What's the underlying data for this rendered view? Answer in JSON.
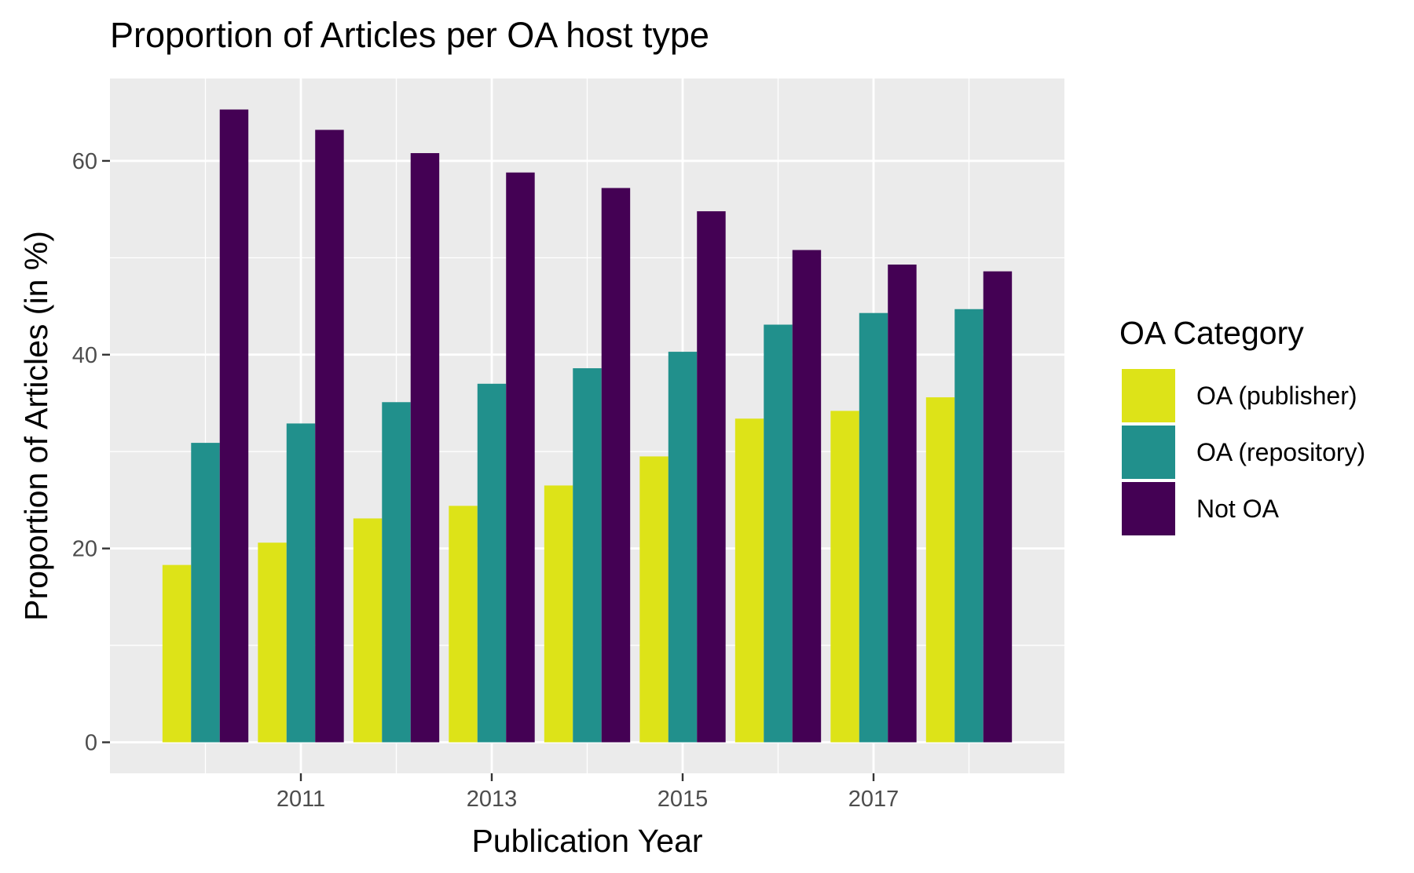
{
  "chart_data": {
    "type": "bar",
    "title": "Proportion of Articles per OA host type",
    "xlabel": "Publication Year",
    "ylabel": "Proportion of Articles (in %)",
    "categories": [
      2010,
      2011,
      2012,
      2013,
      2014,
      2015,
      2016,
      2017,
      2018
    ],
    "x_tick_labels": [
      "2011",
      "2013",
      "2015",
      "2017"
    ],
    "x_tick_values": [
      2011,
      2013,
      2015,
      2017
    ],
    "xlim": [
      2009,
      2019
    ],
    "y_tick_labels": [
      "0",
      "20",
      "40",
      "60"
    ],
    "y_tick_values": [
      0,
      20,
      40,
      60
    ],
    "ylim": [
      -3.2,
      68.5
    ],
    "grid": true,
    "legend": {
      "title": "OA Category",
      "position": "right"
    },
    "series": [
      {
        "name": "OA (publisher)",
        "color": "#dde318",
        "values": [
          18.3,
          20.6,
          23.1,
          24.4,
          26.5,
          29.5,
          33.4,
          34.2,
          35.6
        ]
      },
      {
        "name": "OA (repository)",
        "color": "#21908c",
        "values": [
          30.9,
          32.9,
          35.1,
          37.0,
          38.6,
          40.3,
          43.1,
          44.3,
          44.7
        ]
      },
      {
        "name": "Not OA",
        "color": "#440154",
        "values": [
          65.3,
          63.2,
          60.8,
          58.8,
          57.2,
          54.8,
          50.8,
          49.3,
          48.6
        ]
      }
    ]
  }
}
